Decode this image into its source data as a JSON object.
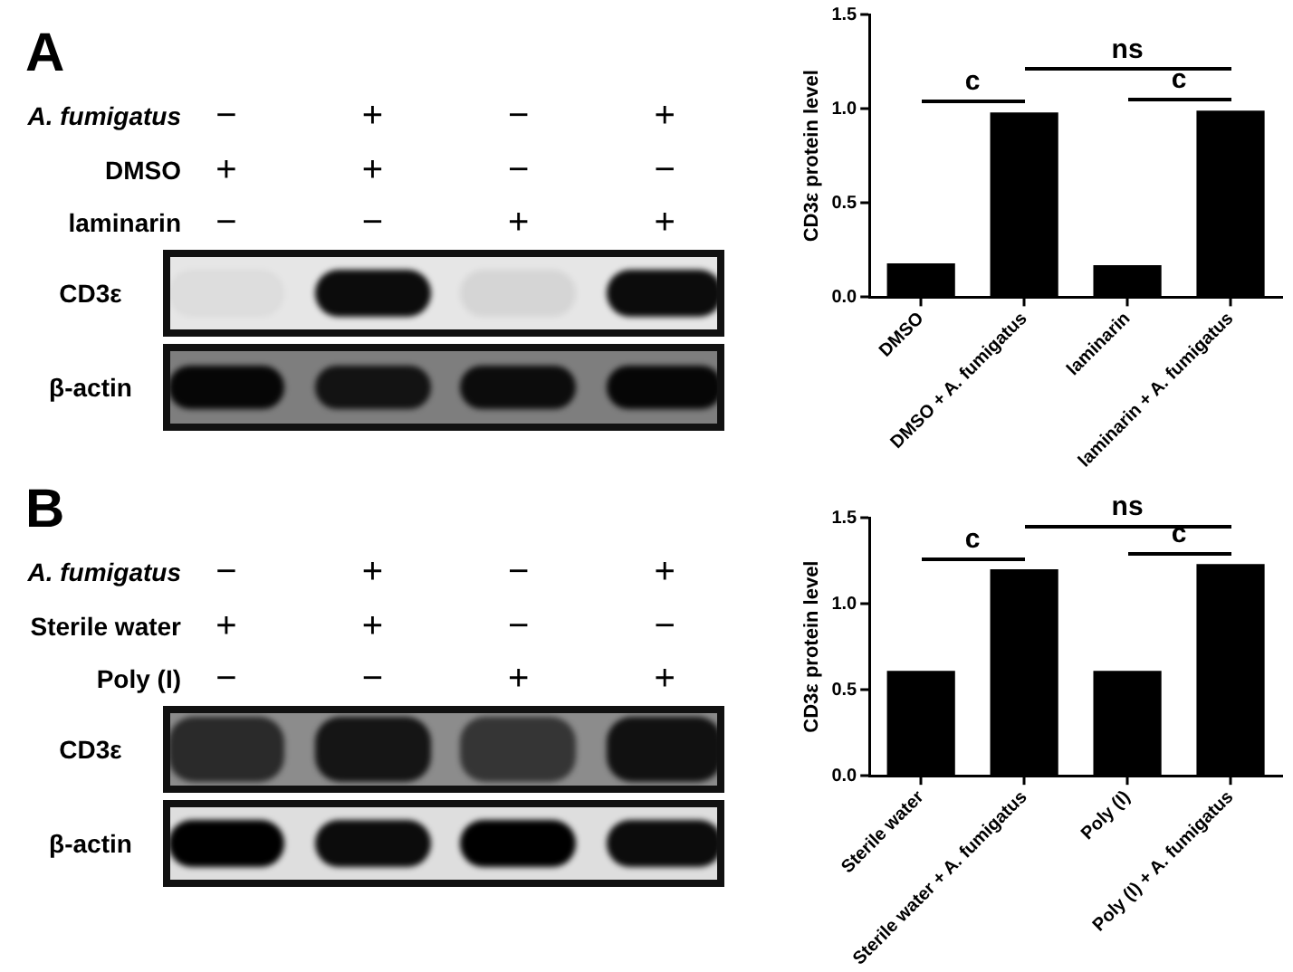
{
  "chart_data": [
    {
      "type": "other",
      "title": "A",
      "y_categories": [
        "A. fumigatus",
        "DMSO",
        "laminarin"
      ],
      "cell_labels": [
        [
          "−",
          "+",
          "−",
          "+"
        ],
        [
          "+",
          "+",
          "−",
          "−"
        ],
        [
          "−",
          "−",
          "+",
          "+"
        ]
      ],
      "annotations": [
        "CD3ε",
        "β-actin"
      ]
    },
    {
      "type": "bar",
      "ylabel": "CD3ε protein level",
      "categories": [
        "DMSO",
        "DMSO + A. fumigatus",
        "laminarin",
        "laminarin + A. fumigatus"
      ],
      "values": [
        0.18,
        0.98,
        0.17,
        0.99
      ],
      "color": "#000000",
      "ylim": [
        0,
        1.5
      ],
      "yticks": [
        {
          "value": 0,
          "label": "0.0"
        },
        {
          "value": 0.5,
          "label": "0.5"
        },
        {
          "value": 1,
          "label": "1.0"
        },
        {
          "value": 1.5,
          "label": "1.5"
        }
      ],
      "annotations": [
        "c",
        "c",
        "ns"
      ]
    },
    {
      "type": "other",
      "title": "B",
      "y_categories": [
        "A. fumigatus",
        "Sterile water",
        "Poly (I)"
      ],
      "cell_labels": [
        [
          "−",
          "+",
          "−",
          "+"
        ],
        [
          "+",
          "+",
          "−",
          "−"
        ],
        [
          "−",
          "−",
          "+",
          "+"
        ]
      ],
      "annotations": [
        "CD3ε",
        "β-actin"
      ]
    },
    {
      "type": "bar",
      "ylabel": "CD3ε protein level",
      "categories": [
        "Sterile water",
        "Sterile water + A. fumigatus",
        "Poly (I)",
        "Poly (I) + A. fumigatus"
      ],
      "values": [
        0.61,
        1.2,
        0.61,
        1.23
      ],
      "color": "#000000",
      "ylim": [
        0,
        1.5
      ],
      "yticks": [
        {
          "value": 0,
          "label": "0.0"
        },
        {
          "value": 0.5,
          "label": "0.5"
        },
        {
          "value": 1,
          "label": "1.0"
        },
        {
          "value": 1.5,
          "label": "1.5"
        }
      ],
      "annotations": [
        "c",
        "c",
        "ns"
      ]
    }
  ]
}
